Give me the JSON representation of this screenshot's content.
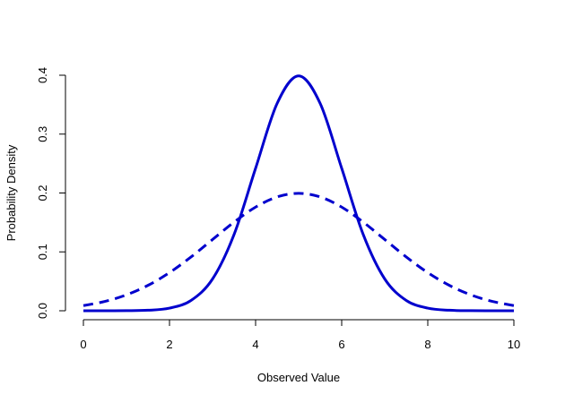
{
  "chart_data": {
    "type": "line",
    "title": "",
    "xlabel": "Observed Value",
    "ylabel": "Probability Density",
    "xlim": [
      0,
      10
    ],
    "ylim": [
      0,
      0.4
    ],
    "x_ticks": [
      0,
      2,
      4,
      6,
      8,
      10
    ],
    "x_tick_labels": [
      "0",
      "2",
      "4",
      "6",
      "8",
      "10"
    ],
    "y_ticks": [
      0,
      0.1,
      0.2,
      0.3,
      0.4
    ],
    "y_tick_labels": [
      "0.0",
      "0.1",
      "0.2",
      "0.3",
      "0.4"
    ],
    "grid": false,
    "legend": "none",
    "x": [
      0,
      0.5,
      1,
      1.5,
      2,
      2.5,
      3,
      3.5,
      4,
      4.5,
      5,
      5.5,
      6,
      6.5,
      7,
      7.5,
      8,
      8.5,
      9,
      9.5,
      10
    ],
    "series": [
      {
        "style": "solid",
        "color": "#0000cd",
        "values": [
          1.5e-06,
          8e-06,
          0.0001338,
          0.0008727,
          0.0044318,
          0.0175283,
          0.053991,
          0.1295176,
          0.2419707,
          0.3520653,
          0.3989423,
          0.3520653,
          0.2419707,
          0.1295176,
          0.053991,
          0.0175283,
          0.0044318,
          0.0008727,
          0.0001338,
          1.6e-05,
          1.5e-06
        ]
      },
      {
        "style": "dashed",
        "color": "#0000cd",
        "values": [
          0.0087642,
          0.0158698,
          0.0269955,
          0.0431386,
          0.0647588,
          0.0913245,
          0.1209854,
          0.1505687,
          0.1760327,
          0.1933341,
          0.1994711,
          0.1933341,
          0.1760327,
          0.1505687,
          0.1209854,
          0.0913245,
          0.0647588,
          0.0431386,
          0.0269955,
          0.0158698,
          0.0087642
        ]
      }
    ]
  }
}
